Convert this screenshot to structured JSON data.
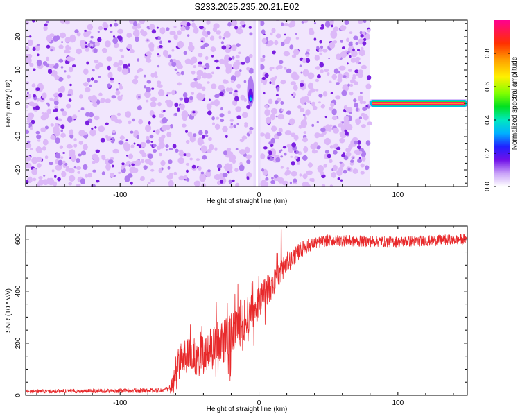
{
  "title": "S233.2025.235.20.21.E02",
  "chart_data": [
    {
      "type": "heatmap",
      "xlabel": "Height of straight line (km)",
      "ylabel": "Frequency (Hz)",
      "xlim": [
        -168,
        150
      ],
      "ylim": [
        -25,
        25
      ],
      "xticks": [
        -100,
        0,
        100
      ],
      "yticks": [
        -20,
        -10,
        0,
        10,
        20
      ],
      "colorbar": {
        "label": "Normalized spectral amplitude",
        "range": [
          0,
          1
        ],
        "ticks": [
          0.0,
          0.2,
          0.4,
          0.6,
          0.8
        ]
      },
      "features": {
        "noise_region_x": [
          -168,
          80
        ],
        "gap_x": -1.5,
        "blob_x": -6,
        "blob_y": 1.5,
        "carrier_x": [
          80,
          150
        ],
        "carrier_freq": 0,
        "carrier_amplitude": 0.95
      },
      "colors": {
        "noise_light": "#dcb8f8",
        "noise_mid": "#b07cf0",
        "noise_dark": "#7a1fe0"
      }
    },
    {
      "type": "line",
      "xlabel": "Height of straight line (km)",
      "ylabel": "SNR (10 * v/v)",
      "xlim": [
        -168,
        150
      ],
      "ylim": [
        0,
        650
      ],
      "xticks": [
        -100,
        0,
        100
      ],
      "yticks": [
        0,
        200,
        400,
        600
      ],
      "color": "#e8292b",
      "anchors": {
        "x": [
          -168,
          -70,
          -62,
          -58,
          -55,
          -50,
          -45,
          -40,
          -35,
          -30,
          -25,
          -20,
          -15,
          -10,
          -5,
          0,
          5,
          10,
          15,
          20,
          25,
          30,
          40,
          50,
          70,
          100,
          130,
          150
        ],
        "y": [
          15,
          18,
          30,
          120,
          160,
          150,
          140,
          160,
          190,
          200,
          210,
          230,
          260,
          290,
          320,
          360,
          390,
          430,
          470,
          510,
          530,
          560,
          585,
          595,
          592,
          590,
          595,
          600
        ]
      },
      "noise_amplitude": {
        "x": [
          -168,
          -65,
          -60,
          -20,
          0,
          20,
          40,
          150
        ],
        "a": [
          7,
          9,
          70,
          85,
          70,
          40,
          22,
          20
        ]
      },
      "max_point": {
        "x": 16,
        "y": 635
      }
    }
  ]
}
